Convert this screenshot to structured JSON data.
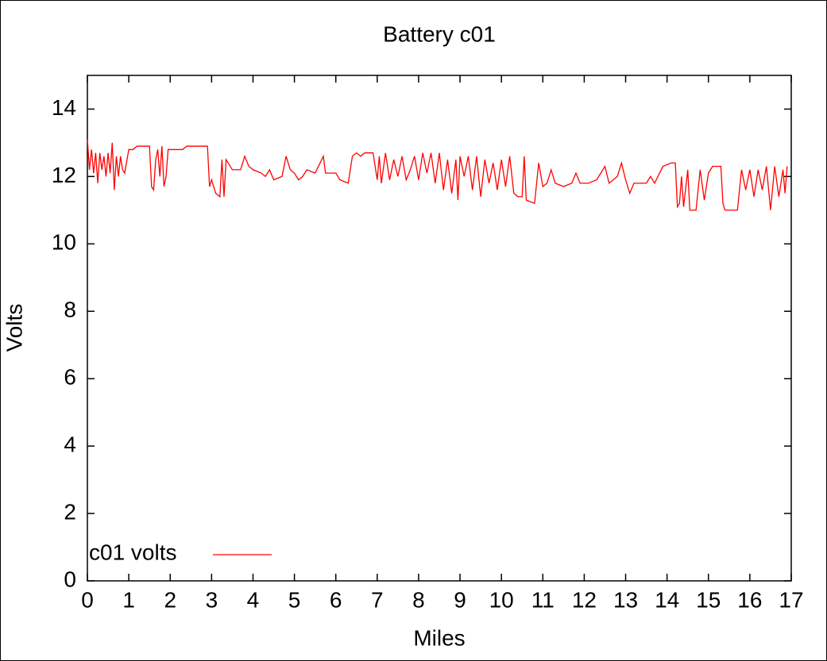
{
  "chart_data": {
    "type": "line",
    "title": "Battery c01",
    "xlabel": "Miles",
    "ylabel": "Volts",
    "x": [
      0.0,
      0.05,
      0.1,
      0.15,
      0.2,
      0.25,
      0.3,
      0.35,
      0.4,
      0.45,
      0.5,
      0.55,
      0.6,
      0.65,
      0.7,
      0.75,
      0.8,
      0.85,
      0.9,
      1.0,
      1.1,
      1.2,
      1.4,
      1.5,
      1.55,
      1.6,
      1.65,
      1.7,
      1.75,
      1.8,
      1.85,
      1.9,
      1.95,
      2.0,
      2.3,
      2.4,
      2.9,
      2.95,
      3.0,
      3.1,
      3.2,
      3.25,
      3.3,
      3.35,
      3.45,
      3.5,
      3.7,
      3.8,
      3.9,
      4.0,
      4.2,
      4.3,
      4.4,
      4.5,
      4.7,
      4.8,
      4.9,
      5.0,
      5.1,
      5.2,
      5.3,
      5.5,
      5.7,
      5.75,
      6.0,
      6.1,
      6.3,
      6.4,
      6.5,
      6.6,
      6.7,
      6.9,
      7.0,
      7.05,
      7.1,
      7.2,
      7.3,
      7.4,
      7.5,
      7.6,
      7.7,
      7.8,
      7.9,
      8.0,
      8.1,
      8.2,
      8.3,
      8.4,
      8.5,
      8.6,
      8.7,
      8.8,
      8.9,
      8.95,
      9.0,
      9.1,
      9.2,
      9.3,
      9.4,
      9.5,
      9.6,
      9.7,
      9.8,
      9.9,
      10.0,
      10.1,
      10.2,
      10.3,
      10.4,
      10.5,
      10.55,
      10.6,
      10.8,
      10.9,
      11.0,
      11.1,
      11.2,
      11.3,
      11.5,
      11.7,
      11.8,
      11.9,
      12.1,
      12.3,
      12.5,
      12.6,
      12.8,
      12.9,
      13.0,
      13.1,
      13.2,
      13.5,
      13.6,
      13.7,
      13.9,
      14.1,
      14.2,
      14.25,
      14.3,
      14.35,
      14.4,
      14.5,
      14.55,
      14.7,
      14.8,
      14.9,
      15.0,
      15.1,
      15.3,
      15.35,
      15.4,
      15.7,
      15.8,
      15.9,
      16.0,
      16.1,
      16.2,
      16.3,
      16.4,
      16.5,
      16.6,
      16.7,
      16.8,
      16.85,
      16.9
    ],
    "series": [
      {
        "name": "c01 volts",
        "color": "#ff0000",
        "values": [
          13.1,
          12.2,
          12.8,
          12.1,
          12.7,
          11.8,
          12.7,
          12.2,
          12.6,
          12.0,
          12.7,
          12.1,
          13.0,
          11.6,
          12.6,
          12.0,
          12.6,
          12.2,
          12.1,
          12.8,
          12.8,
          12.9,
          12.9,
          12.9,
          11.7,
          11.6,
          12.5,
          12.8,
          12.0,
          12.9,
          11.7,
          12.0,
          12.8,
          12.8,
          12.8,
          12.9,
          12.9,
          11.7,
          11.9,
          11.5,
          11.4,
          12.5,
          11.4,
          12.5,
          12.3,
          12.2,
          12.2,
          12.6,
          12.3,
          12.2,
          12.1,
          12.0,
          12.2,
          11.9,
          12.0,
          12.6,
          12.2,
          12.1,
          11.9,
          12.0,
          12.2,
          12.1,
          12.6,
          12.1,
          12.1,
          11.9,
          11.8,
          12.6,
          12.7,
          12.6,
          12.7,
          12.7,
          11.9,
          12.6,
          11.8,
          12.7,
          11.9,
          12.5,
          12.0,
          12.6,
          11.9,
          12.2,
          12.6,
          11.9,
          12.7,
          12.1,
          12.7,
          11.8,
          12.7,
          11.6,
          12.5,
          11.5,
          12.5,
          11.3,
          12.6,
          12.0,
          12.6,
          11.6,
          12.6,
          11.4,
          12.5,
          11.8,
          12.4,
          11.6,
          12.5,
          11.7,
          12.6,
          11.5,
          11.4,
          11.4,
          12.6,
          11.3,
          11.2,
          12.4,
          11.7,
          11.8,
          12.2,
          11.8,
          11.7,
          11.8,
          12.1,
          11.8,
          11.8,
          11.9,
          12.3,
          11.8,
          12.0,
          12.4,
          11.9,
          11.5,
          11.8,
          11.8,
          12.0,
          11.8,
          12.3,
          12.4,
          12.4,
          11.1,
          11.2,
          12.0,
          11.1,
          12.2,
          11.0,
          11.0,
          12.2,
          11.3,
          12.1,
          12.3,
          12.3,
          11.2,
          11.0,
          11.0,
          12.2,
          11.6,
          12.2,
          11.4,
          12.2,
          11.6,
          12.3,
          11.0,
          12.3,
          11.4,
          12.2,
          11.5,
          12.3
        ]
      }
    ],
    "xlim": [
      0,
      17
    ],
    "xticks": [
      0,
      1,
      2,
      3,
      4,
      5,
      6,
      7,
      8,
      9,
      10,
      11,
      12,
      13,
      14,
      15,
      16,
      17
    ],
    "ylim": [
      0,
      15
    ],
    "yticks": [
      0,
      2,
      4,
      6,
      8,
      10,
      12,
      14
    ],
    "legend": "bottom left"
  }
}
